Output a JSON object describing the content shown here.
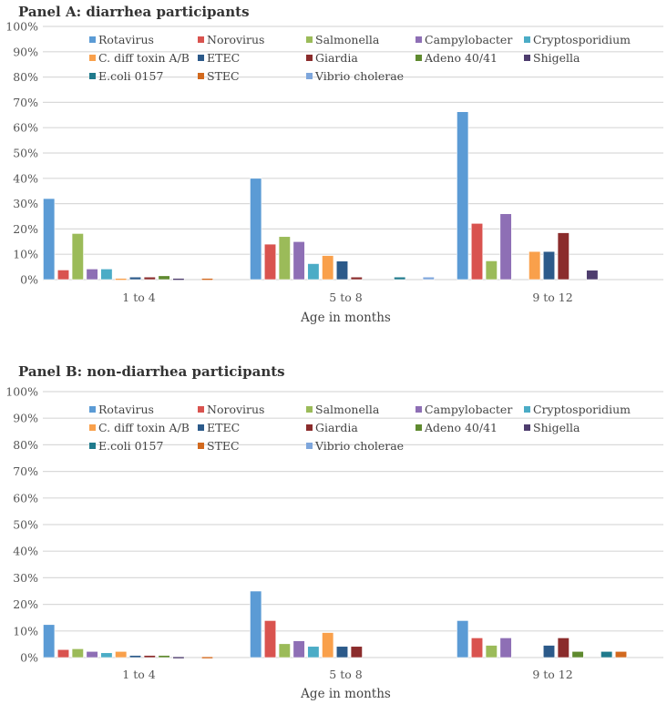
{
  "chart_data": [
    {
      "type": "bar",
      "title": "Panel A: diarrhea participants",
      "xlabel": "Age in months",
      "ylabel": "",
      "ylim": [
        0,
        100
      ],
      "yticks": [
        "0%",
        "10%",
        "20%",
        "30%",
        "40%",
        "50%",
        "60%",
        "70%",
        "80%",
        "90%",
        "100%"
      ],
      "grid": true,
      "legend_position": "top",
      "categories": [
        "1 to 4",
        "5 to 8",
        "9 to 12"
      ],
      "series": [
        {
          "name": "Rotavirus",
          "color": "#5b9bd5",
          "values": [
            32.0,
            40.0,
            66.3
          ]
        },
        {
          "name": "Norovirus",
          "color": "#d9534f",
          "values": [
            3.8,
            14.0,
            22.2
          ]
        },
        {
          "name": "Salmonella",
          "color": "#9bbb59",
          "values": [
            18.2,
            17.0,
            7.4
          ]
        },
        {
          "name": "Campylobacter",
          "color": "#8e6fb5",
          "values": [
            4.2,
            15.0,
            26.0
          ]
        },
        {
          "name": "Cryptosporidium",
          "color": "#4bacc6",
          "values": [
            4.2,
            6.3,
            0
          ]
        },
        {
          "name": "C. diff toxin A/B",
          "color": "#f9a04b",
          "values": [
            0.5,
            9.5,
            11.1
          ]
        },
        {
          "name": "ETEC",
          "color": "#2c5a8a",
          "values": [
            1.0,
            7.3,
            11.1
          ]
        },
        {
          "name": "Giardia",
          "color": "#8b2c2c",
          "values": [
            1.0,
            1.0,
            18.5
          ]
        },
        {
          "name": "Adeno 40/41",
          "color": "#5f8a2f",
          "values": [
            1.5,
            0,
            0
          ]
        },
        {
          "name": "Shigella",
          "color": "#4e3d6e",
          "values": [
            0.5,
            0,
            3.7
          ]
        },
        {
          "name": "E.coli 0157",
          "color": "#1f7a8c",
          "values": [
            0,
            1.0,
            0
          ]
        },
        {
          "name": "STEC",
          "color": "#d2691e",
          "values": [
            0.5,
            0,
            0
          ]
        },
        {
          "name": "Vibrio cholerae",
          "color": "#7ea6dc",
          "values": [
            0,
            1.0,
            0
          ]
        }
      ]
    },
    {
      "type": "bar",
      "title": "Panel B: non-diarrhea participants",
      "xlabel": "Age in months",
      "ylabel": "",
      "ylim": [
        0,
        100
      ],
      "yticks": [
        "0%",
        "10%",
        "20%",
        "30%",
        "40%",
        "50%",
        "60%",
        "70%",
        "80%",
        "90%",
        "100%"
      ],
      "grid": true,
      "legend_position": "top",
      "categories": [
        "1 to 4",
        "5 to 8",
        "9 to 12"
      ],
      "series": [
        {
          "name": "Rotavirus",
          "color": "#5b9bd5",
          "values": [
            12.4,
            25.0,
            13.9
          ]
        },
        {
          "name": "Norovirus",
          "color": "#d9534f",
          "values": [
            3.0,
            13.9,
            7.4
          ]
        },
        {
          "name": "Salmonella",
          "color": "#9bbb59",
          "values": [
            3.3,
            5.2,
            4.6
          ]
        },
        {
          "name": "Campylobacter",
          "color": "#8e6fb5",
          "values": [
            2.3,
            6.3,
            7.4
          ]
        },
        {
          "name": "Cryptosporidium",
          "color": "#4bacc6",
          "values": [
            1.8,
            4.2,
            0
          ]
        },
        {
          "name": "C. diff toxin A/B",
          "color": "#f9a04b",
          "values": [
            2.3,
            9.4,
            0
          ]
        },
        {
          "name": "ETEC",
          "color": "#2c5a8a",
          "values": [
            0.8,
            4.2,
            4.6
          ]
        },
        {
          "name": "Giardia",
          "color": "#8b2c2c",
          "values": [
            0.8,
            4.2,
            7.4
          ]
        },
        {
          "name": "Adeno 40/41",
          "color": "#5f8a2f",
          "values": [
            0.8,
            0,
            2.3
          ]
        },
        {
          "name": "Shigella",
          "color": "#4e3d6e",
          "values": [
            0.3,
            0,
            0
          ]
        },
        {
          "name": "E.coli 0157",
          "color": "#1f7a8c",
          "values": [
            0,
            0,
            2.3
          ]
        },
        {
          "name": "STEC",
          "color": "#d2691e",
          "values": [
            0.3,
            0,
            2.3
          ]
        },
        {
          "name": "Vibrio cholerae",
          "color": "#7ea6dc",
          "values": [
            0,
            0,
            0
          ]
        }
      ]
    }
  ]
}
